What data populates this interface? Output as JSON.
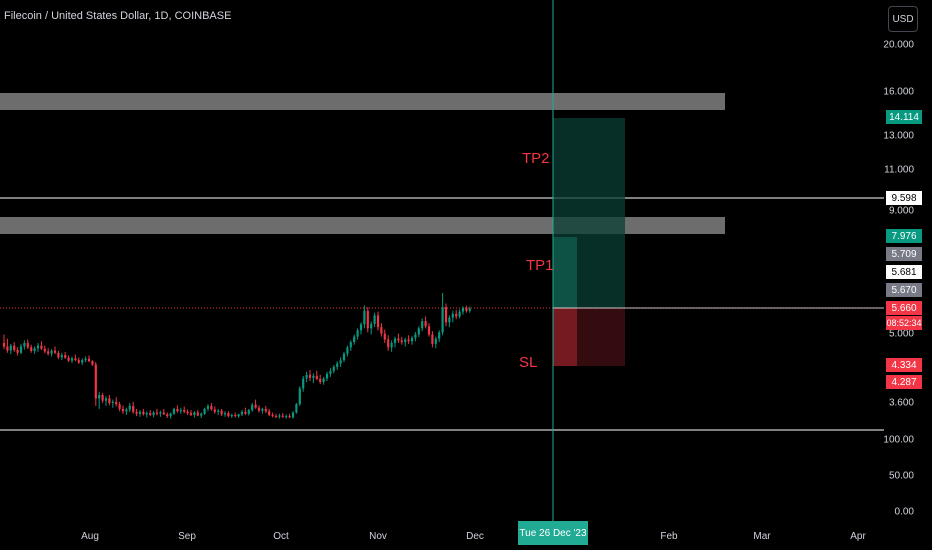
{
  "header": {
    "symbol_title": "Filecoin / United States Dollar, 1D, COINBASE",
    "currency_button": "USD"
  },
  "chart_data": {
    "type": "candlestick",
    "title": "Filecoin / United States Dollar, 1D, COINBASE",
    "scale": "log",
    "y_ticks": [
      "20.000",
      "16.000",
      "14.114",
      "13.000",
      "11.000",
      "9.598",
      "9.000",
      "7.976",
      "5.709",
      "5.681",
      "5.670",
      "5.660",
      "08:52:34",
      "5.000",
      "4.334",
      "4.287",
      "3.600",
      "100.00",
      "50.00",
      "0.00"
    ],
    "x_ticks": [
      "Aug",
      "Sep",
      "Oct",
      "Nov",
      "Dec",
      "Tue 26 Dec '23",
      "Feb",
      "Mar",
      "Apr"
    ],
    "price_labels": {
      "tp_top": "14.114",
      "line_upper": "9.598",
      "tp1": "7.976",
      "level_a": "5.709",
      "level_b": "5.681",
      "level_c": "5.670",
      "current": "5.660",
      "countdown": "08:52:34",
      "sl_a": "4.334",
      "sl_b": "4.287"
    },
    "axis_labels": {
      "p20": "20.000",
      "p16": "16.000",
      "p13": "13.000",
      "p11": "11.000",
      "p9": "9.000",
      "p5": "5.000",
      "p36": "3.600",
      "v100": "100.00",
      "v50": "50.00",
      "v0": "0.00"
    },
    "annotations": {
      "tp2": "TP2",
      "tp1": "TP1",
      "sl": "SL"
    },
    "colors": {
      "up": "#089981",
      "down": "#f23645",
      "zone": "#808080",
      "target": "#22ab94",
      "stop": "#f23645"
    },
    "ohlc": [
      {
        "o": 4.8,
        "h": 5.0,
        "l": 4.66,
        "c": 4.72
      },
      {
        "o": 4.72,
        "h": 4.9,
        "l": 4.58,
        "c": 4.63
      },
      {
        "o": 4.63,
        "h": 4.78,
        "l": 4.55,
        "c": 4.74
      },
      {
        "o": 4.74,
        "h": 4.82,
        "l": 4.6,
        "c": 4.64
      },
      {
        "o": 4.64,
        "h": 4.7,
        "l": 4.52,
        "c": 4.58
      },
      {
        "o": 4.58,
        "h": 4.78,
        "l": 4.55,
        "c": 4.72
      },
      {
        "o": 4.72,
        "h": 4.86,
        "l": 4.65,
        "c": 4.8
      },
      {
        "o": 4.8,
        "h": 4.88,
        "l": 4.66,
        "c": 4.7
      },
      {
        "o": 4.7,
        "h": 4.76,
        "l": 4.58,
        "c": 4.62
      },
      {
        "o": 4.62,
        "h": 4.72,
        "l": 4.56,
        "c": 4.68
      },
      {
        "o": 4.68,
        "h": 4.8,
        "l": 4.6,
        "c": 4.74
      },
      {
        "o": 4.74,
        "h": 4.84,
        "l": 4.64,
        "c": 4.67
      },
      {
        "o": 4.67,
        "h": 4.74,
        "l": 4.57,
        "c": 4.61
      },
      {
        "o": 4.61,
        "h": 4.68,
        "l": 4.52,
        "c": 4.56
      },
      {
        "o": 4.56,
        "h": 4.66,
        "l": 4.5,
        "c": 4.63
      },
      {
        "o": 4.63,
        "h": 4.72,
        "l": 4.55,
        "c": 4.58
      },
      {
        "o": 4.58,
        "h": 4.62,
        "l": 4.44,
        "c": 4.48
      },
      {
        "o": 4.48,
        "h": 4.58,
        "l": 4.42,
        "c": 4.53
      },
      {
        "o": 4.53,
        "h": 4.6,
        "l": 4.45,
        "c": 4.47
      },
      {
        "o": 4.47,
        "h": 4.52,
        "l": 4.38,
        "c": 4.41
      },
      {
        "o": 4.41,
        "h": 4.5,
        "l": 4.36,
        "c": 4.46
      },
      {
        "o": 4.46,
        "h": 4.54,
        "l": 4.4,
        "c": 4.42
      },
      {
        "o": 4.42,
        "h": 4.48,
        "l": 4.34,
        "c": 4.37
      },
      {
        "o": 4.37,
        "h": 4.46,
        "l": 4.32,
        "c": 4.42
      },
      {
        "o": 4.42,
        "h": 4.5,
        "l": 4.38,
        "c": 4.45
      },
      {
        "o": 4.45,
        "h": 4.52,
        "l": 4.38,
        "c": 4.4
      },
      {
        "o": 4.4,
        "h": 4.42,
        "l": 4.3,
        "c": 4.33
      },
      {
        "o": 4.33,
        "h": 4.38,
        "l": 3.55,
        "c": 3.68
      },
      {
        "o": 3.68,
        "h": 3.8,
        "l": 3.5,
        "c": 3.74
      },
      {
        "o": 3.74,
        "h": 3.78,
        "l": 3.6,
        "c": 3.64
      },
      {
        "o": 3.64,
        "h": 3.72,
        "l": 3.55,
        "c": 3.68
      },
      {
        "o": 3.68,
        "h": 3.74,
        "l": 3.56,
        "c": 3.6
      },
      {
        "o": 3.6,
        "h": 3.66,
        "l": 3.52,
        "c": 3.62
      },
      {
        "o": 3.62,
        "h": 3.7,
        "l": 3.54,
        "c": 3.58
      },
      {
        "o": 3.58,
        "h": 3.62,
        "l": 3.46,
        "c": 3.5
      },
      {
        "o": 3.5,
        "h": 3.56,
        "l": 3.42,
        "c": 3.46
      },
      {
        "o": 3.46,
        "h": 3.52,
        "l": 3.4,
        "c": 3.49
      },
      {
        "o": 3.49,
        "h": 3.6,
        "l": 3.45,
        "c": 3.55
      },
      {
        "o": 3.55,
        "h": 3.62,
        "l": 3.42,
        "c": 3.45
      },
      {
        "o": 3.45,
        "h": 3.5,
        "l": 3.38,
        "c": 3.42
      },
      {
        "o": 3.42,
        "h": 3.48,
        "l": 3.37,
        "c": 3.45
      },
      {
        "o": 3.45,
        "h": 3.5,
        "l": 3.39,
        "c": 3.41
      },
      {
        "o": 3.41,
        "h": 3.46,
        "l": 3.36,
        "c": 3.43
      },
      {
        "o": 3.43,
        "h": 3.48,
        "l": 3.38,
        "c": 3.4
      },
      {
        "o": 3.4,
        "h": 3.46,
        "l": 3.36,
        "c": 3.44
      },
      {
        "o": 3.44,
        "h": 3.5,
        "l": 3.39,
        "c": 3.42
      },
      {
        "o": 3.42,
        "h": 3.47,
        "l": 3.37,
        "c": 3.44
      },
      {
        "o": 3.44,
        "h": 3.5,
        "l": 3.4,
        "c": 3.41
      },
      {
        "o": 3.41,
        "h": 3.44,
        "l": 3.35,
        "c": 3.38
      },
      {
        "o": 3.38,
        "h": 3.44,
        "l": 3.34,
        "c": 3.42
      },
      {
        "o": 3.42,
        "h": 3.52,
        "l": 3.4,
        "c": 3.5
      },
      {
        "o": 3.5,
        "h": 3.56,
        "l": 3.44,
        "c": 3.46
      },
      {
        "o": 3.46,
        "h": 3.52,
        "l": 3.42,
        "c": 3.48
      },
      {
        "o": 3.48,
        "h": 3.54,
        "l": 3.43,
        "c": 3.45
      },
      {
        "o": 3.45,
        "h": 3.49,
        "l": 3.4,
        "c": 3.43
      },
      {
        "o": 3.43,
        "h": 3.48,
        "l": 3.38,
        "c": 3.4
      },
      {
        "o": 3.4,
        "h": 3.46,
        "l": 3.36,
        "c": 3.44
      },
      {
        "o": 3.44,
        "h": 3.48,
        "l": 3.38,
        "c": 3.39
      },
      {
        "o": 3.39,
        "h": 3.44,
        "l": 3.35,
        "c": 3.42
      },
      {
        "o": 3.42,
        "h": 3.52,
        "l": 3.4,
        "c": 3.5
      },
      {
        "o": 3.5,
        "h": 3.58,
        "l": 3.46,
        "c": 3.55
      },
      {
        "o": 3.55,
        "h": 3.6,
        "l": 3.47,
        "c": 3.49
      },
      {
        "o": 3.49,
        "h": 3.54,
        "l": 3.42,
        "c": 3.45
      },
      {
        "o": 3.45,
        "h": 3.5,
        "l": 3.4,
        "c": 3.47
      },
      {
        "o": 3.47,
        "h": 3.5,
        "l": 3.38,
        "c": 3.41
      },
      {
        "o": 3.41,
        "h": 3.46,
        "l": 3.37,
        "c": 3.43
      },
      {
        "o": 3.43,
        "h": 3.46,
        "l": 3.36,
        "c": 3.38
      },
      {
        "o": 3.38,
        "h": 3.42,
        "l": 3.35,
        "c": 3.4
      },
      {
        "o": 3.4,
        "h": 3.44,
        "l": 3.36,
        "c": 3.38
      },
      {
        "o": 3.38,
        "h": 3.42,
        "l": 3.35,
        "c": 3.41
      },
      {
        "o": 3.41,
        "h": 3.48,
        "l": 3.38,
        "c": 3.45
      },
      {
        "o": 3.45,
        "h": 3.52,
        "l": 3.4,
        "c": 3.42
      },
      {
        "o": 3.42,
        "h": 3.5,
        "l": 3.39,
        "c": 3.48
      },
      {
        "o": 3.48,
        "h": 3.6,
        "l": 3.45,
        "c": 3.57
      },
      {
        "o": 3.57,
        "h": 3.66,
        "l": 3.5,
        "c": 3.52
      },
      {
        "o": 3.52,
        "h": 3.56,
        "l": 3.44,
        "c": 3.47
      },
      {
        "o": 3.47,
        "h": 3.52,
        "l": 3.42,
        "c": 3.5
      },
      {
        "o": 3.5,
        "h": 3.55,
        "l": 3.43,
        "c": 3.46
      },
      {
        "o": 3.46,
        "h": 3.5,
        "l": 3.38,
        "c": 3.4
      },
      {
        "o": 3.4,
        "h": 3.44,
        "l": 3.36,
        "c": 3.38
      },
      {
        "o": 3.38,
        "h": 3.42,
        "l": 3.35,
        "c": 3.37
      },
      {
        "o": 3.37,
        "h": 3.42,
        "l": 3.34,
        "c": 3.39
      },
      {
        "o": 3.39,
        "h": 3.43,
        "l": 3.35,
        "c": 3.37
      },
      {
        "o": 3.37,
        "h": 3.41,
        "l": 3.34,
        "c": 3.38
      },
      {
        "o": 3.38,
        "h": 3.42,
        "l": 3.35,
        "c": 3.36
      },
      {
        "o": 3.36,
        "h": 3.46,
        "l": 3.34,
        "c": 3.44
      },
      {
        "o": 3.44,
        "h": 3.6,
        "l": 3.42,
        "c": 3.58
      },
      {
        "o": 3.58,
        "h": 3.9,
        "l": 3.55,
        "c": 3.86
      },
      {
        "o": 3.86,
        "h": 4.1,
        "l": 3.8,
        "c": 4.05
      },
      {
        "o": 4.05,
        "h": 4.18,
        "l": 3.98,
        "c": 4.12
      },
      {
        "o": 4.12,
        "h": 4.22,
        "l": 4.0,
        "c": 4.06
      },
      {
        "o": 4.06,
        "h": 4.15,
        "l": 3.96,
        "c": 4.1
      },
      {
        "o": 4.1,
        "h": 4.2,
        "l": 4.02,
        "c": 4.04
      },
      {
        "o": 4.04,
        "h": 4.12,
        "l": 3.94,
        "c": 3.98
      },
      {
        "o": 3.98,
        "h": 4.08,
        "l": 3.93,
        "c": 4.05
      },
      {
        "o": 4.05,
        "h": 4.18,
        "l": 4.0,
        "c": 4.14
      },
      {
        "o": 4.14,
        "h": 4.26,
        "l": 4.08,
        "c": 4.2
      },
      {
        "o": 4.2,
        "h": 4.32,
        "l": 4.15,
        "c": 4.28
      },
      {
        "o": 4.28,
        "h": 4.4,
        "l": 4.22,
        "c": 4.35
      },
      {
        "o": 4.35,
        "h": 4.48,
        "l": 4.28,
        "c": 4.42
      },
      {
        "o": 4.42,
        "h": 4.6,
        "l": 4.38,
        "c": 4.56
      },
      {
        "o": 4.56,
        "h": 4.74,
        "l": 4.5,
        "c": 4.7
      },
      {
        "o": 4.7,
        "h": 4.86,
        "l": 4.62,
        "c": 4.82
      },
      {
        "o": 4.82,
        "h": 5.0,
        "l": 4.76,
        "c": 4.95
      },
      {
        "o": 4.95,
        "h": 5.15,
        "l": 4.88,
        "c": 5.1
      },
      {
        "o": 5.1,
        "h": 5.3,
        "l": 5.0,
        "c": 5.25
      },
      {
        "o": 5.25,
        "h": 5.75,
        "l": 5.15,
        "c": 5.6
      },
      {
        "o": 5.6,
        "h": 5.7,
        "l": 5.05,
        "c": 5.15
      },
      {
        "o": 5.15,
        "h": 5.32,
        "l": 5.0,
        "c": 5.26
      },
      {
        "o": 5.26,
        "h": 5.55,
        "l": 5.18,
        "c": 5.48
      },
      {
        "o": 5.48,
        "h": 5.58,
        "l": 5.1,
        "c": 5.18
      },
      {
        "o": 5.18,
        "h": 5.28,
        "l": 4.95,
        "c": 5.02
      },
      {
        "o": 5.02,
        "h": 5.12,
        "l": 4.8,
        "c": 4.88
      },
      {
        "o": 4.88,
        "h": 4.98,
        "l": 4.62,
        "c": 4.7
      },
      {
        "o": 4.7,
        "h": 4.86,
        "l": 4.6,
        "c": 4.8
      },
      {
        "o": 4.8,
        "h": 4.95,
        "l": 4.7,
        "c": 4.9
      },
      {
        "o": 4.9,
        "h": 5.02,
        "l": 4.8,
        "c": 4.86
      },
      {
        "o": 4.86,
        "h": 4.94,
        "l": 4.76,
        "c": 4.82
      },
      {
        "o": 4.82,
        "h": 4.92,
        "l": 4.72,
        "c": 4.88
      },
      {
        "o": 4.88,
        "h": 4.98,
        "l": 4.78,
        "c": 4.84
      },
      {
        "o": 4.84,
        "h": 4.96,
        "l": 4.76,
        "c": 4.92
      },
      {
        "o": 4.92,
        "h": 5.06,
        "l": 4.84,
        "c": 5.0
      },
      {
        "o": 5.0,
        "h": 5.2,
        "l": 4.94,
        "c": 5.15
      },
      {
        "o": 5.15,
        "h": 5.4,
        "l": 5.08,
        "c": 5.33
      },
      {
        "o": 5.33,
        "h": 5.45,
        "l": 5.15,
        "c": 5.2
      },
      {
        "o": 5.2,
        "h": 5.28,
        "l": 4.95,
        "c": 5.0
      },
      {
        "o": 5.0,
        "h": 5.08,
        "l": 4.7,
        "c": 4.78
      },
      {
        "o": 4.78,
        "h": 4.95,
        "l": 4.68,
        "c": 4.9
      },
      {
        "o": 4.9,
        "h": 5.1,
        "l": 4.82,
        "c": 5.05
      },
      {
        "o": 5.05,
        "h": 6.1,
        "l": 4.98,
        "c": 5.7
      },
      {
        "o": 5.7,
        "h": 5.8,
        "l": 5.2,
        "c": 5.3
      },
      {
        "o": 5.3,
        "h": 5.48,
        "l": 5.18,
        "c": 5.42
      },
      {
        "o": 5.42,
        "h": 5.6,
        "l": 5.3,
        "c": 5.52
      },
      {
        "o": 5.52,
        "h": 5.62,
        "l": 5.38,
        "c": 5.45
      },
      {
        "o": 5.45,
        "h": 5.64,
        "l": 5.4,
        "c": 5.58
      },
      {
        "o": 5.58,
        "h": 5.72,
        "l": 5.5,
        "c": 5.68
      },
      {
        "o": 5.68,
        "h": 5.74,
        "l": 5.55,
        "c": 5.6
      },
      {
        "o": 5.6,
        "h": 5.72,
        "l": 5.55,
        "c": 5.66
      }
    ]
  }
}
